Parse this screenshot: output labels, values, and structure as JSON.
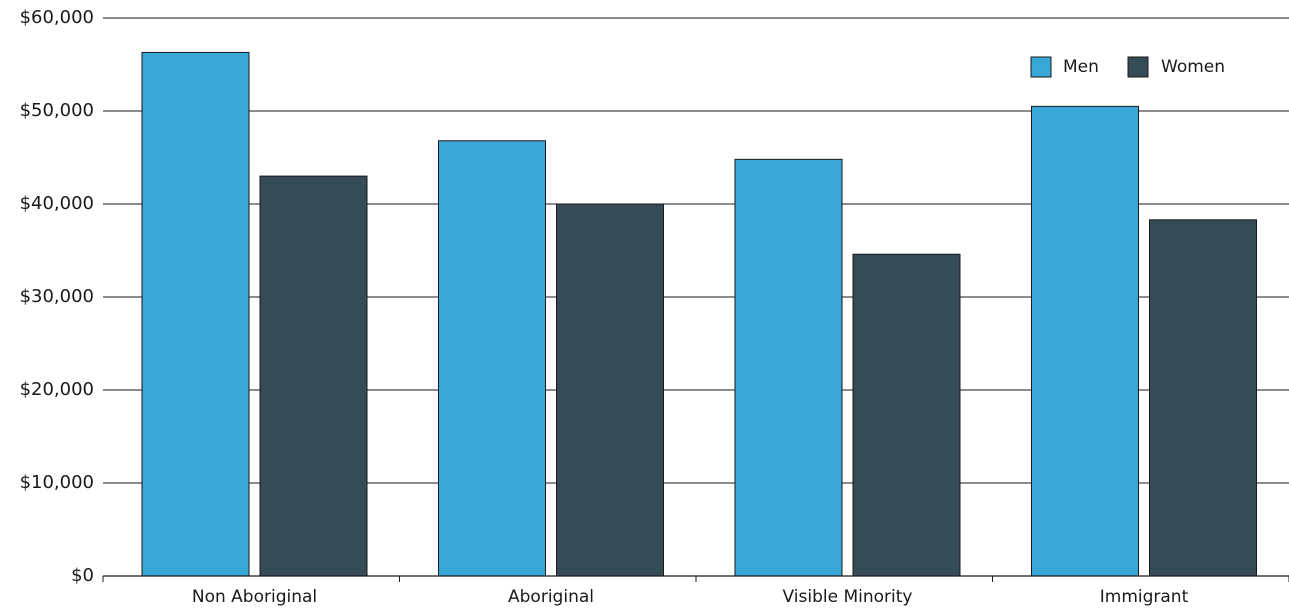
{
  "chart_data": {
    "type": "bar",
    "title": "",
    "xlabel": "",
    "ylabel": "",
    "ylim": [
      0,
      60000
    ],
    "yticks": [
      0,
      10000,
      20000,
      30000,
      40000,
      50000,
      60000
    ],
    "ytick_labels": [
      "$0",
      "$10,000",
      "$20,000",
      "$30,000",
      "$40,000",
      "$50,000",
      "$60,000"
    ],
    "grid": true,
    "legend_position": "top-right",
    "categories": [
      "Non Aboriginal",
      "Aboriginal",
      "Visible Minority",
      "Immigrant"
    ],
    "series": [
      {
        "name": "Men",
        "color": "#38a6d6",
        "values": [
          56300,
          46800,
          44800,
          50500
        ]
      },
      {
        "name": "Women",
        "color": "#354b55",
        "values": [
          43000,
          40000,
          34600,
          38300
        ]
      }
    ]
  }
}
